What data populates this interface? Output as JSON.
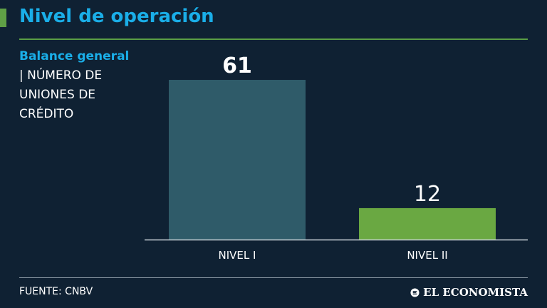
{
  "header": {
    "title": "Nivel de operación",
    "subtitle_accent": "Balance general",
    "subtitle_sep": "|",
    "subtitle_desc": "NÚMERO DE UNIONES DE CRÉDITO"
  },
  "footer": {
    "source": "FUENTE: CNBV",
    "brand": "EL ECONOMISTA"
  },
  "colors": {
    "background": "#0f2133",
    "title": "#1aaee8",
    "bar_nivel_1": "#2f5b69",
    "bar_nivel_2": "#6aa842",
    "rule": "#5a9e45"
  },
  "icons": [
    "brand-logo-icon"
  ],
  "chart_data": {
    "type": "bar",
    "title": "Nivel de operación",
    "xlabel": "",
    "ylabel": "",
    "categories": [
      "NIVEL I",
      "NIVEL II"
    ],
    "values": [
      61,
      12
    ],
    "value_labels": [
      "61",
      "12"
    ],
    "ylim": [
      0,
      61
    ],
    "grid": false
  }
}
